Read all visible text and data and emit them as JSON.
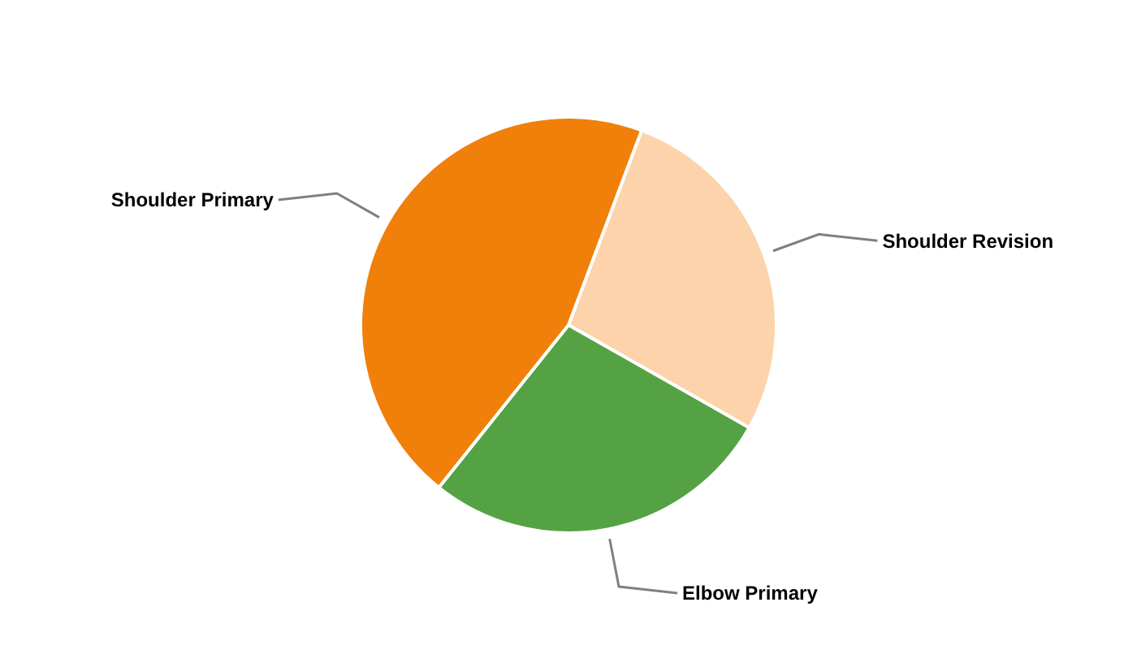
{
  "chart_data": {
    "type": "pie",
    "categories": [
      "Shoulder Revision",
      "Elbow Primary",
      "Shoulder Primary"
    ],
    "values": [
      27.5,
      27.5,
      45
    ],
    "colors": [
      "#fcd3ab",
      "#54a244",
      "#f0800a"
    ]
  }
}
